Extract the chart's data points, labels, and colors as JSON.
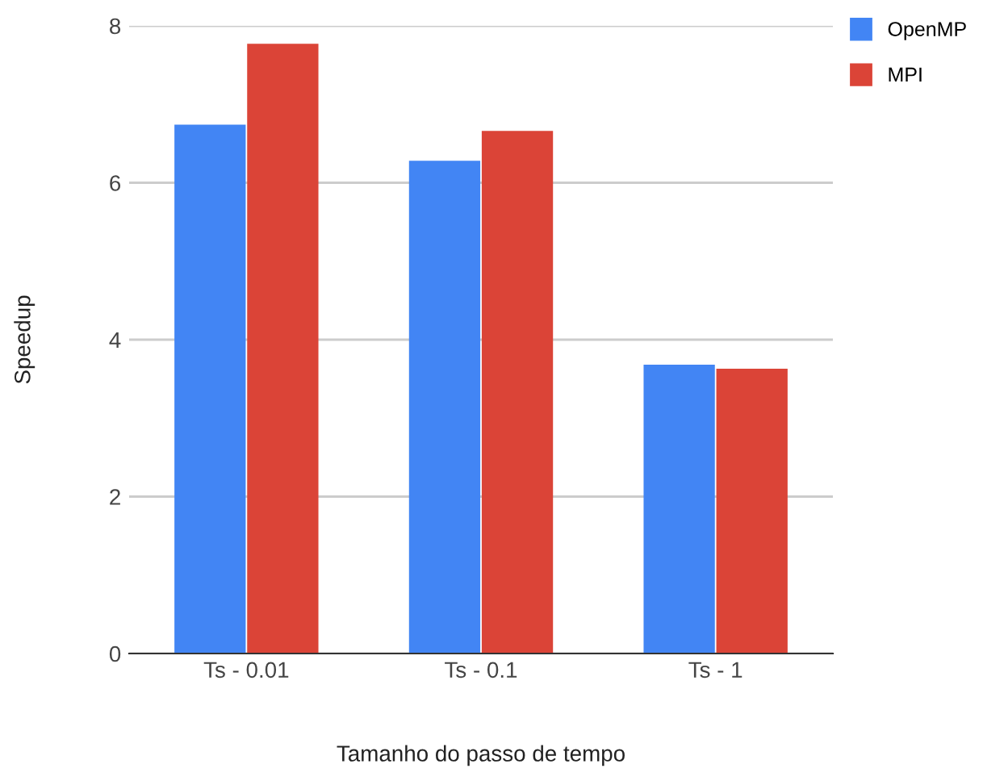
{
  "chart_data": {
    "type": "bar",
    "xlabel": "Tamanho do passo de tempo",
    "ylabel": "Speedup",
    "categories": [
      "Ts - 0.01",
      "Ts - 0.1",
      "Ts - 1"
    ],
    "series": [
      {
        "name": "OpenMP",
        "color": "#4285f4",
        "values": [
          6.74,
          6.28,
          3.68
        ]
      },
      {
        "name": "MPI",
        "color": "#db4437",
        "values": [
          7.77,
          6.66,
          3.63
        ]
      }
    ],
    "ylim": [
      0,
      8
    ],
    "yticks": [
      0,
      2,
      4,
      6,
      8
    ],
    "grid": "y",
    "legend": "top right"
  }
}
